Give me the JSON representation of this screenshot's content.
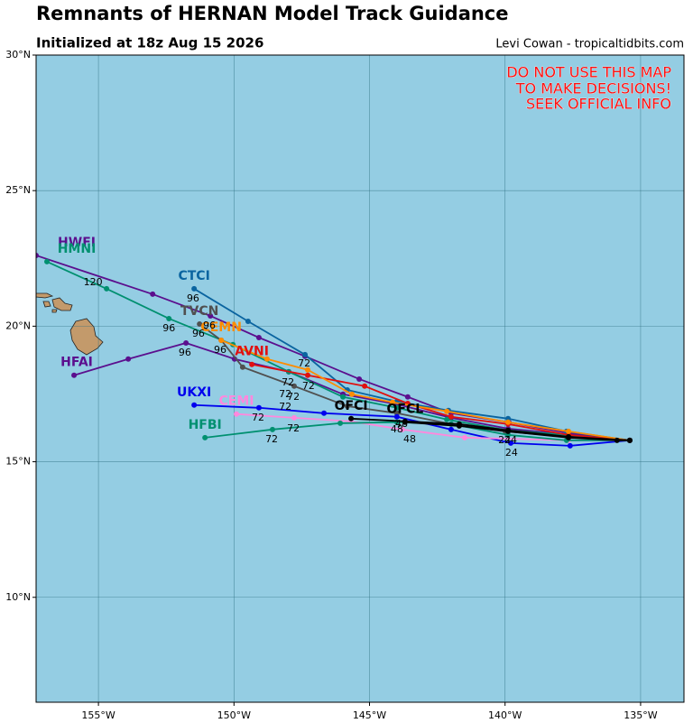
{
  "chart_data": {
    "type": "track-map",
    "title": "Remnants of HERNAN Model Track Guidance",
    "subtitle": "Initialized at 18z Aug 15 2026",
    "credit": "Levi Cowan - tropicaltidbits.com",
    "warning": [
      "DO NOT USE THIS MAP",
      "TO MAKE DECISIONS!",
      "SEEK OFFICIAL INFO"
    ],
    "xlim": [
      -157.3,
      -133.4
    ],
    "ylim": [
      6.13,
      30
    ],
    "xticks": [
      {
        "value": -155,
        "label": "155°W"
      },
      {
        "value": -150,
        "label": "150°W"
      },
      {
        "value": -145,
        "label": "145°W"
      },
      {
        "value": -140,
        "label": "140°W"
      },
      {
        "value": -135,
        "label": "135°W"
      }
    ],
    "yticks": [
      {
        "value": 10,
        "label": "10°N"
      },
      {
        "value": 15,
        "label": "15°N"
      },
      {
        "value": 20,
        "label": "20°N"
      },
      {
        "value": 25,
        "label": "25°N"
      },
      {
        "value": 30,
        "label": "30°N"
      }
    ],
    "grid": true,
    "series": [
      {
        "name": "HWFI",
        "color": "#5b0f8e",
        "x": [
          -135.4,
          -137.66,
          -139.86,
          -141.99,
          -143.59,
          -145.38,
          -147.38,
          -149.08,
          -150.87,
          -153.0,
          -157.3
        ],
        "values": [
          15.79,
          16.06,
          16.46,
          16.79,
          17.39,
          18.05,
          18.89,
          19.58,
          20.38,
          21.18,
          22.61
        ]
      },
      {
        "name": "HFAI",
        "color": "#5b0f8e",
        "x": [
          -135.4,
          -137.5,
          -139.89,
          -141.99,
          -143.99,
          -145.98,
          -147.98,
          -149.98,
          -151.77,
          -153.9,
          -155.9
        ],
        "values": [
          15.79,
          15.99,
          16.22,
          16.62,
          17.12,
          17.49,
          18.32,
          18.79,
          19.38,
          18.79,
          18.19
        ]
      },
      {
        "name": "HMNI",
        "color": "#009070",
        "x": [
          -135.4,
          -137.73,
          -139.89,
          -142.15,
          -143.99,
          -145.98,
          -147.98,
          -150.04,
          -152.4,
          -154.7,
          -156.9
        ],
        "values": [
          15.79,
          15.99,
          16.16,
          16.56,
          16.99,
          17.39,
          18.32,
          19.32,
          20.28,
          21.38,
          22.38
        ]
      },
      {
        "name": "CTCI",
        "color": "#0a64a0",
        "x": [
          -135.4,
          -137.73,
          -139.89,
          -142.09,
          -143.99,
          -145.82,
          -147.38,
          -149.48,
          -151.47
        ],
        "values": [
          15.79,
          16.12,
          16.59,
          16.89,
          17.22,
          17.65,
          18.95,
          20.18,
          21.38
        ]
      },
      {
        "name": "TVCN",
        "color": "#505050",
        "x": [
          -135.4,
          -137.66,
          -139.99,
          -141.99,
          -143.99,
          -145.82,
          -147.78,
          -149.68,
          -150.47,
          -151.27
        ],
        "values": [
          15.79,
          15.92,
          16.12,
          16.39,
          16.79,
          17.05,
          17.79,
          18.49,
          19.48,
          20.08
        ]
      },
      {
        "name": "AVNI",
        "color": "#e01010",
        "x": [
          -135.4,
          -137.66,
          -139.89,
          -141.99,
          -143.59,
          -145.18,
          -147.28,
          -149.34
        ],
        "values": [
          15.79,
          15.99,
          16.39,
          16.66,
          17.15,
          17.79,
          18.19,
          18.59
        ]
      },
      {
        "name": "CEMN",
        "color": "#ff8c00",
        "x": [
          -135.4,
          -137.66,
          -139.89,
          -142.15,
          -144.15,
          -145.65,
          -147.28,
          -148.78,
          -150.47
        ],
        "values": [
          15.79,
          16.12,
          16.46,
          16.86,
          17.19,
          17.49,
          18.39,
          18.79,
          19.48
        ]
      },
      {
        "name": "UKXI",
        "color": "#0000ee",
        "x": [
          -135.4,
          -137.6,
          -139.79,
          -141.99,
          -143.99,
          -146.68,
          -149.08,
          -151.47
        ],
        "values": [
          15.79,
          15.59,
          15.69,
          16.19,
          16.66,
          16.79,
          16.99,
          17.09
        ]
      },
      {
        "name": "CEMI",
        "color": "#ff88dd",
        "x": [
          -135.4,
          -137.66,
          -141.49,
          -143.79,
          -145.68,
          -147.78,
          -149.91
        ],
        "values": [
          15.79,
          15.79,
          15.89,
          16.19,
          16.49,
          16.62,
          16.76
        ]
      },
      {
        "name": "HFBI",
        "color": "#009070",
        "x": [
          -135.4,
          -137.73,
          -139.89,
          -141.99,
          -143.99,
          -146.08,
          -148.58,
          -151.07
        ],
        "values": [
          15.79,
          15.79,
          15.99,
          16.39,
          16.46,
          16.42,
          16.19,
          15.89
        ]
      },
      {
        "name": "OFCL",
        "color": "#000000",
        "x": [
          -135.4,
          -135.87,
          -137.66,
          -139.89,
          -141.69,
          -143.69
        ],
        "values": [
          15.79,
          15.79,
          15.89,
          16.12,
          16.32,
          16.46
        ]
      },
      {
        "name": "OFCI",
        "color": "#000000",
        "x": [
          -135.4,
          -137.66,
          -139.89,
          -141.69,
          -143.69,
          -145.68
        ],
        "values": [
          15.79,
          15.92,
          16.16,
          16.39,
          16.49,
          16.59
        ]
      }
    ],
    "hour_labels": [
      {
        "text": "120",
        "lon": -155.2,
        "lat": 21.61
      },
      {
        "text": "96",
        "lon": -151.51,
        "lat": 21.01
      },
      {
        "text": "96",
        "lon": -152.4,
        "lat": 19.92
      },
      {
        "text": "96",
        "lon": -151.31,
        "lat": 19.72
      },
      {
        "text": "96",
        "lon": -150.91,
        "lat": 20.02
      },
      {
        "text": "96",
        "lon": -151.81,
        "lat": 19.02
      },
      {
        "text": "96",
        "lon": -150.51,
        "lat": 19.12
      },
      {
        "text": "72",
        "lon": -147.41,
        "lat": 18.62
      },
      {
        "text": "72",
        "lon": -148.01,
        "lat": 17.92
      },
      {
        "text": "72",
        "lon": -148.11,
        "lat": 17.49
      },
      {
        "text": "72",
        "lon": -147.81,
        "lat": 17.39
      },
      {
        "text": "72",
        "lon": -147.25,
        "lat": 17.79
      },
      {
        "text": "72",
        "lon": -148.11,
        "lat": 17.02
      },
      {
        "text": "72",
        "lon": -149.11,
        "lat": 16.62
      },
      {
        "text": "72",
        "lon": -147.81,
        "lat": 16.22
      },
      {
        "text": "72",
        "lon": -148.61,
        "lat": 15.82
      },
      {
        "text": "48",
        "lon": -143.52,
        "lat": 15.82
      },
      {
        "text": "48",
        "lon": -143.99,
        "lat": 16.19
      },
      {
        "text": "48",
        "lon": -143.82,
        "lat": 16.39
      },
      {
        "text": "24",
        "lon": -139.76,
        "lat": 15.32
      },
      {
        "text": "24",
        "lon": -140.02,
        "lat": 15.79
      },
      {
        "text": "24",
        "lon": -139.79,
        "lat": 15.79
      }
    ]
  }
}
